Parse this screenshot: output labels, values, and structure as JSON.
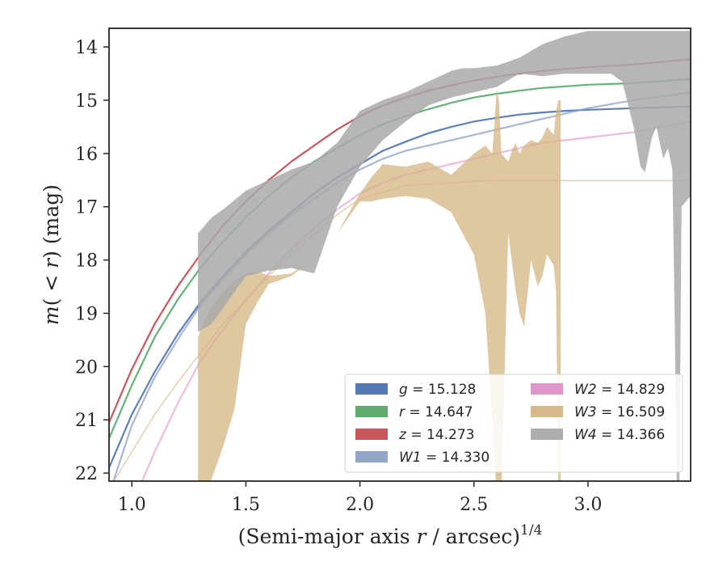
{
  "chart_data": {
    "type": "line",
    "title": "",
    "xlabel": "(Semi-major axis r / arcsec)^1/4",
    "xlabel_parts": {
      "pre": "(Semi-major axis ",
      "var": "r",
      "post": " / arcsec)",
      "sup": "1/4"
    },
    "ylabel": "m(<r) (mag)",
    "ylabel_parts": {
      "var": "m",
      "open": "(",
      "lt": " < ",
      "r": "r",
      "close": ")",
      "unit": " (mag)"
    },
    "xlim": [
      0.9,
      3.45
    ],
    "ylim": [
      22.15,
      13.65
    ],
    "y_inverted": true,
    "xticks": [
      1.0,
      1.5,
      2.0,
      2.5,
      3.0
    ],
    "xtick_labels": [
      "1.0",
      "1.5",
      "2.0",
      "2.5",
      "3.0"
    ],
    "yticks": [
      14,
      15,
      16,
      17,
      18,
      19,
      20,
      21,
      22
    ],
    "ytick_labels": [
      "14",
      "15",
      "16",
      "17",
      "18",
      "19",
      "20",
      "21",
      "22"
    ],
    "grid": false,
    "legend_position": "lower-right",
    "series": [
      {
        "name": "g = 15.128",
        "sym": "g",
        "val": "15.128",
        "color": "#4c72b0",
        "x": [
          0.9,
          1.0,
          1.1,
          1.2,
          1.3,
          1.4,
          1.5,
          1.6,
          1.7,
          1.8,
          1.9,
          2.0,
          2.1,
          2.2,
          2.3,
          2.4,
          2.5,
          2.6,
          2.7,
          2.8,
          2.9,
          3.0,
          3.2,
          3.45
        ],
        "y": [
          21.9,
          20.9,
          20.1,
          19.4,
          18.8,
          18.3,
          17.85,
          17.45,
          17.1,
          16.75,
          16.45,
          16.2,
          15.95,
          15.78,
          15.62,
          15.5,
          15.4,
          15.33,
          15.27,
          15.23,
          15.2,
          15.18,
          15.15,
          15.12
        ]
      },
      {
        "name": "r = 14.647",
        "sym": "r",
        "val": "14.647",
        "color": "#55a868",
        "x": [
          0.9,
          1.0,
          1.1,
          1.2,
          1.3,
          1.4,
          1.5,
          1.6,
          1.7,
          1.8,
          1.9,
          2.0,
          2.1,
          2.2,
          2.3,
          2.4,
          2.5,
          2.6,
          2.7,
          2.8,
          2.9,
          3.0,
          3.2,
          3.45
        ],
        "y": [
          21.35,
          20.35,
          19.45,
          18.75,
          18.15,
          17.65,
          17.2,
          16.8,
          16.45,
          16.15,
          15.9,
          15.65,
          15.45,
          15.3,
          15.17,
          15.05,
          14.95,
          14.88,
          14.82,
          14.77,
          14.74,
          14.71,
          14.68,
          14.6
        ]
      },
      {
        "name": "z = 14.273",
        "sym": "z",
        "val": "14.273",
        "color": "#c44e52",
        "x": [
          0.9,
          1.0,
          1.1,
          1.2,
          1.3,
          1.4,
          1.5,
          1.6,
          1.7,
          1.8,
          1.9,
          2.0,
          2.1,
          2.2,
          2.3,
          2.4,
          2.5,
          2.6,
          2.7,
          2.8,
          2.9,
          3.0,
          3.2,
          3.45
        ],
        "y": [
          21.05,
          20.05,
          19.2,
          18.5,
          17.9,
          17.35,
          16.9,
          16.5,
          16.15,
          15.85,
          15.55,
          15.3,
          15.1,
          14.95,
          14.82,
          14.72,
          14.63,
          14.56,
          14.5,
          14.45,
          14.41,
          14.38,
          14.33,
          14.23
        ]
      },
      {
        "name": "W1 = 14.330",
        "sym": "W1",
        "val": "14.330",
        "color": "#8c9fc5",
        "x": [
          0.9,
          1.0,
          1.1,
          1.2,
          1.3,
          1.4,
          1.5,
          1.6,
          1.7,
          1.8,
          1.9,
          2.0,
          2.1,
          2.2,
          2.3,
          2.4,
          2.5,
          2.6,
          2.7,
          2.8,
          2.9,
          3.0,
          3.2,
          3.45
        ],
        "y": [
          22.4,
          21.1,
          20.2,
          19.5,
          18.85,
          18.35,
          17.9,
          17.5,
          17.15,
          16.85,
          16.55,
          16.3,
          16.1,
          15.95,
          15.85,
          15.75,
          15.65,
          15.55,
          15.45,
          15.35,
          15.25,
          15.15,
          15.0,
          14.85
        ]
      },
      {
        "name": "W2 = 14.829",
        "sym": "W2",
        "val": "14.829",
        "color": "#dd8fc7",
        "x": [
          0.9,
          1.0,
          1.1,
          1.2,
          1.3,
          1.4,
          1.5,
          1.6,
          1.7,
          1.8,
          1.9,
          2.0,
          2.1,
          2.2,
          2.3,
          2.4,
          2.5,
          2.6,
          2.7,
          2.8,
          2.9,
          3.0,
          3.2,
          3.45
        ],
        "y": [
          24.0,
          22.6,
          21.6,
          20.7,
          19.9,
          19.3,
          18.75,
          18.25,
          17.8,
          17.4,
          17.05,
          16.75,
          16.55,
          16.4,
          16.3,
          16.2,
          16.1,
          16.0,
          15.9,
          15.8,
          15.75,
          15.7,
          15.6,
          15.4
        ]
      },
      {
        "name": "W3 = 16.509",
        "sym": "W3",
        "val": "16.509",
        "color": "#d4b483",
        "x": [
          0.9,
          1.0,
          1.1,
          1.2,
          1.3,
          1.4,
          1.5,
          1.6,
          1.7,
          1.8,
          1.9,
          2.0,
          2.2,
          2.4,
          2.5,
          2.6,
          2.7,
          2.8,
          2.88,
          3.0,
          3.2,
          3.45
        ],
        "y": [
          22.3,
          21.6,
          20.9,
          20.3,
          19.75,
          19.2,
          18.75,
          18.3,
          17.9,
          17.5,
          17.15,
          16.85,
          16.6,
          16.55,
          16.52,
          16.51,
          16.51,
          16.51,
          16.51,
          16.51,
          16.51,
          16.51
        ],
        "band_x": [
          1.29,
          1.31,
          1.35,
          1.4,
          1.45,
          1.5,
          1.55,
          1.6,
          1.7,
          1.8,
          1.9,
          2.0,
          2.05,
          2.1,
          2.2,
          2.3,
          2.4,
          2.5,
          2.55,
          2.58,
          2.6,
          2.61,
          2.62,
          2.65,
          2.68,
          2.7,
          2.72,
          2.75,
          2.78,
          2.8,
          2.82,
          2.85,
          2.86,
          2.87,
          2.88
        ],
        "band_upper": [
          19.45,
          19.2,
          18.9,
          18.6,
          18.4,
          18.25,
          18.2,
          18.3,
          18.25,
          17.95,
          17.5,
          16.75,
          16.45,
          16.2,
          16.25,
          16.15,
          16.4,
          16.0,
          15.85,
          16.0,
          14.8,
          15.0,
          16.0,
          16.15,
          15.8,
          16.0,
          15.85,
          15.75,
          15.8,
          15.7,
          15.5,
          15.65,
          15.2,
          15.0,
          15.0
        ],
        "band_lower": [
          22.5,
          22.5,
          22.1,
          21.5,
          20.8,
          19.2,
          18.8,
          18.45,
          18.3,
          17.95,
          17.5,
          16.9,
          16.9,
          16.85,
          16.8,
          16.85,
          17.1,
          17.9,
          19.0,
          21.0,
          22.5,
          22.5,
          22.5,
          17.5,
          18.5,
          19.0,
          19.25,
          18.0,
          18.5,
          18.3,
          17.9,
          18.1,
          18.6,
          22.5,
          22.5
        ]
      },
      {
        "name": "W4 = 14.366",
        "sym": "W4",
        "val": "14.366",
        "color": "#a9a9a9",
        "band_x": [
          1.29,
          1.35,
          1.4,
          1.5,
          1.6,
          1.7,
          1.8,
          1.9,
          2.0,
          2.1,
          2.2,
          2.3,
          2.4,
          2.45,
          2.5,
          2.6,
          2.7,
          2.8,
          2.9,
          3.0,
          3.1,
          3.15,
          3.2,
          3.23,
          3.25,
          3.28,
          3.3,
          3.33,
          3.35,
          3.37,
          3.38,
          3.39,
          3.4,
          3.41,
          3.45
        ],
        "band_upper": [
          17.5,
          17.2,
          17.05,
          16.7,
          16.5,
          16.3,
          16.15,
          15.8,
          15.2,
          15.0,
          14.85,
          14.65,
          14.45,
          14.4,
          14.4,
          14.35,
          14.2,
          13.95,
          13.8,
          13.7,
          13.7,
          13.7,
          13.7,
          13.7,
          13.7,
          13.7,
          13.7,
          13.7,
          13.7,
          13.7,
          13.7,
          13.7,
          13.7,
          13.7,
          13.7
        ],
        "band_lower": [
          19.35,
          19.2,
          18.9,
          18.3,
          18.2,
          18.15,
          18.25,
          17.0,
          16.25,
          15.75,
          15.4,
          15.1,
          14.95,
          14.9,
          14.85,
          14.75,
          14.5,
          14.55,
          14.5,
          14.5,
          14.5,
          14.65,
          15.5,
          16.25,
          16.35,
          15.7,
          15.5,
          16.1,
          15.9,
          16.3,
          19.0,
          22.5,
          22.5,
          17.0,
          16.8
        ]
      }
    ]
  }
}
